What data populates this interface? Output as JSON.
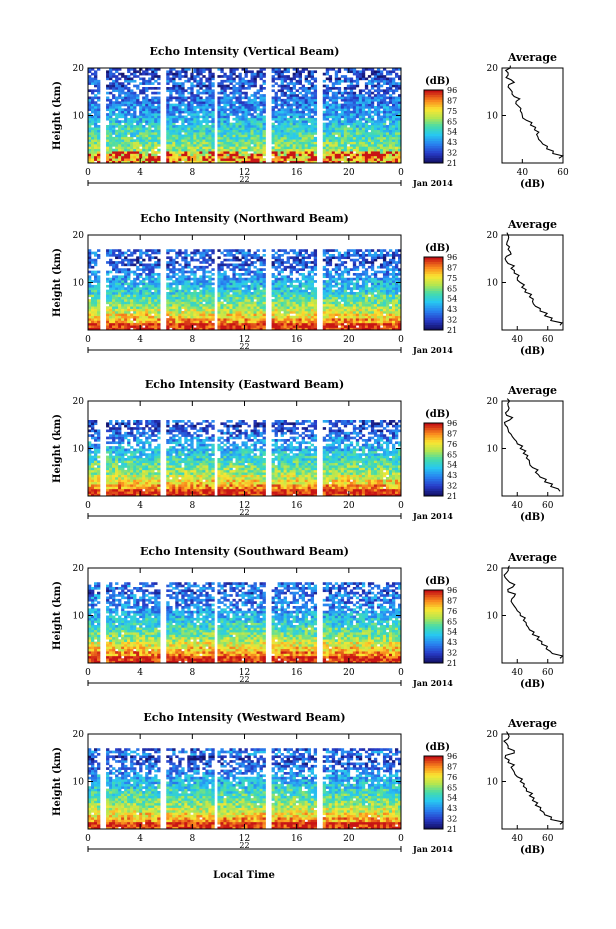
{
  "figure": {
    "x_axis_label": "Local Time",
    "date_label": "Jan 2014",
    "colorbar_unit": "(dB)",
    "average_title": "Average",
    "average_xlabel": "(dB)"
  },
  "chart_data": [
    {
      "type": "heatmap",
      "title": "Echo Intensity (Vertical Beam)",
      "ylabel": "Height (km)",
      "xlabel": "Local Time",
      "day_label": "22",
      "x_ticks": [
        "0",
        "4",
        "8",
        "12",
        "16",
        "20",
        "0"
      ],
      "xlim": [
        0,
        24
      ],
      "y_ticks": [
        "20",
        "10"
      ],
      "ylim": [
        0,
        20
      ],
      "colorbar": {
        "label": "(dB)",
        "ticks": [
          "96",
          "87",
          "75",
          "65",
          "54",
          "43",
          "32",
          "21"
        ],
        "range": [
          21,
          96
        ]
      },
      "data_gaps_hours": [
        [
          1.0,
          1.4
        ],
        [
          5.6,
          6.0
        ],
        [
          9.6,
          10.0
        ],
        [
          13.6,
          14.0
        ],
        [
          17.6,
          18.0
        ]
      ],
      "echo_top_km": 20,
      "average_profile": {
        "xlabel": "(dB)",
        "x_ticks": [
          "40",
          "60"
        ],
        "xlim": [
          30,
          60
        ],
        "y_ticks": [
          "20",
          "10"
        ],
        "ylim": [
          0,
          20
        ],
        "height_km": [
          1,
          2,
          3,
          4,
          5,
          6,
          7,
          8,
          9,
          10,
          11,
          12,
          13,
          14,
          15,
          16,
          17,
          18,
          19,
          20
        ],
        "db": [
          58,
          55,
          52,
          50,
          48,
          47,
          46,
          44,
          42,
          40,
          39,
          38,
          37,
          36,
          35,
          33,
          36,
          32,
          33,
          34
        ]
      }
    },
    {
      "type": "heatmap",
      "title": "Echo Intensity (Northward Beam)",
      "ylabel": "Height (km)",
      "xlabel": "Local Time",
      "day_label": "22",
      "x_ticks": [
        "0",
        "4",
        "8",
        "12",
        "16",
        "20",
        "0"
      ],
      "xlim": [
        0,
        24
      ],
      "y_ticks": [
        "20",
        "10"
      ],
      "ylim": [
        0,
        20
      ],
      "colorbar": {
        "label": "(dB)",
        "ticks": [
          "96",
          "87",
          "75",
          "65",
          "54",
          "43",
          "32",
          "21"
        ],
        "range": [
          21,
          96
        ]
      },
      "data_gaps_hours": [
        [
          1.0,
          1.4
        ],
        [
          5.6,
          6.0
        ],
        [
          9.6,
          10.0
        ],
        [
          13.6,
          14.0
        ],
        [
          17.6,
          18.0
        ]
      ],
      "echo_top_km": 17,
      "average_profile": {
        "xlabel": "(dB)",
        "x_ticks": [
          "40",
          "60"
        ],
        "xlim": [
          30,
          70
        ],
        "y_ticks": [
          "20",
          "10"
        ],
        "ylim": [
          0,
          20
        ],
        "height_km": [
          1,
          2,
          3,
          4,
          5,
          6,
          7,
          8,
          9,
          10,
          11,
          12,
          13,
          14,
          15,
          16,
          17,
          18,
          19,
          20
        ],
        "db": [
          68,
          62,
          58,
          55,
          52,
          50,
          48,
          45,
          43,
          42,
          40,
          38,
          36,
          34,
          32,
          36,
          34,
          33,
          34,
          34
        ]
      }
    },
    {
      "type": "heatmap",
      "title": "Echo Intensity (Eastward Beam)",
      "ylabel": "Height (km)",
      "xlabel": "Local Time",
      "day_label": "22",
      "x_ticks": [
        "0",
        "4",
        "8",
        "12",
        "16",
        "20",
        "0"
      ],
      "xlim": [
        0,
        24
      ],
      "y_ticks": [
        "20",
        "10"
      ],
      "ylim": [
        0,
        20
      ],
      "colorbar": {
        "label": "(dB)",
        "ticks": [
          "96",
          "87",
          "76",
          "65",
          "54",
          "43",
          "32",
          "21"
        ],
        "range": [
          21,
          96
        ]
      },
      "data_gaps_hours": [
        [
          1.0,
          1.4
        ],
        [
          5.6,
          6.0
        ],
        [
          9.6,
          10.0
        ],
        [
          13.6,
          14.0
        ],
        [
          17.6,
          18.0
        ]
      ],
      "echo_top_km": 16,
      "average_profile": {
        "xlabel": "(dB)",
        "x_ticks": [
          "40",
          "60"
        ],
        "xlim": [
          30,
          70
        ],
        "y_ticks": [
          "20",
          "10"
        ],
        "ylim": [
          0,
          20
        ],
        "height_km": [
          1,
          2,
          3,
          4,
          5,
          6,
          7,
          8,
          9,
          10,
          11,
          12,
          13,
          14,
          15,
          16,
          17,
          18,
          19,
          20
        ],
        "db": [
          68,
          62,
          58,
          55,
          52,
          50,
          48,
          46,
          44,
          42,
          40,
          38,
          36,
          34,
          32,
          35,
          33,
          34,
          34,
          35
        ]
      }
    },
    {
      "type": "heatmap",
      "title": "Echo Intensity (Southward Beam)",
      "ylabel": "Height (km)",
      "xlabel": "Local Time",
      "day_label": "22",
      "x_ticks": [
        "0",
        "4",
        "8",
        "12",
        "16",
        "20",
        "0"
      ],
      "xlim": [
        0,
        24
      ],
      "y_ticks": [
        "20",
        "10"
      ],
      "ylim": [
        0,
        20
      ],
      "colorbar": {
        "label": "(dB)",
        "ticks": [
          "96",
          "87",
          "76",
          "65",
          "54",
          "43",
          "32",
          "21"
        ],
        "range": [
          21,
          96
        ]
      },
      "data_gaps_hours": [
        [
          1.0,
          1.4
        ],
        [
          5.6,
          6.0
        ],
        [
          9.6,
          10.0
        ],
        [
          13.6,
          14.0
        ],
        [
          17.6,
          18.0
        ]
      ],
      "echo_top_km": 17,
      "average_profile": {
        "xlabel": "(dB)",
        "x_ticks": [
          "40",
          "60"
        ],
        "xlim": [
          30,
          70
        ],
        "y_ticks": [
          "20",
          "10"
        ],
        "ylim": [
          0,
          20
        ],
        "height_km": [
          1,
          2,
          3,
          4,
          5,
          6,
          7,
          8,
          9,
          10,
          11,
          12,
          13,
          14,
          15,
          16,
          17,
          18,
          19,
          20
        ],
        "db": [
          68,
          63,
          59,
          56,
          53,
          50,
          48,
          46,
          44,
          42,
          40,
          38,
          36,
          38,
          34,
          37,
          35,
          32,
          33,
          34
        ]
      }
    },
    {
      "type": "heatmap",
      "title": "Echo Intensity (Westward Beam)",
      "ylabel": "Height (km)",
      "xlabel": "Local Time",
      "day_label": "22",
      "x_ticks": [
        "0",
        "4",
        "8",
        "12",
        "16",
        "20",
        "0"
      ],
      "xlim": [
        0,
        24
      ],
      "y_ticks": [
        "20",
        "10"
      ],
      "ylim": [
        0,
        20
      ],
      "colorbar": {
        "label": "(dB)",
        "ticks": [
          "96",
          "87",
          "76",
          "65",
          "54",
          "43",
          "32",
          "21"
        ],
        "range": [
          21,
          96
        ]
      },
      "data_gaps_hours": [
        [
          1.0,
          1.4
        ],
        [
          5.6,
          6.0
        ],
        [
          9.6,
          10.0
        ],
        [
          13.6,
          14.0
        ],
        [
          17.6,
          18.0
        ]
      ],
      "echo_top_km": 17,
      "average_profile": {
        "xlabel": "(dB)",
        "x_ticks": [
          "40",
          "60"
        ],
        "xlim": [
          30,
          70
        ],
        "y_ticks": [
          "20",
          "10"
        ],
        "ylim": [
          0,
          20
        ],
        "height_km": [
          1,
          2,
          3,
          4,
          5,
          6,
          7,
          8,
          9,
          10,
          11,
          12,
          13,
          14,
          15,
          16,
          17,
          18,
          19,
          20
        ],
        "db": [
          68,
          62,
          58,
          55,
          52,
          50,
          48,
          46,
          44,
          42,
          40,
          38,
          36,
          34,
          32,
          38,
          34,
          33,
          34,
          34
        ]
      }
    }
  ]
}
